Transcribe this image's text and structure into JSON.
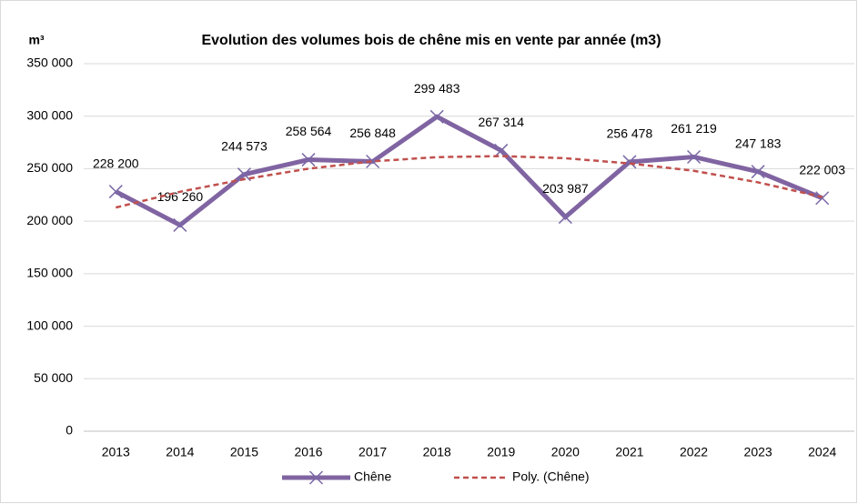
{
  "chart_data": {
    "type": "line",
    "title": "Evolution des volumes bois de chêne mis en vente par année (m3)",
    "ylabel": "m³",
    "categories": [
      "2013",
      "2014",
      "2015",
      "2016",
      "2017",
      "2018",
      "2019",
      "2020",
      "2021",
      "2022",
      "2023",
      "2024"
    ],
    "series": [
      {
        "name": "Chêne",
        "color": "#8064a2",
        "marker": "x",
        "values": [
          228200,
          196260,
          244573,
          258564,
          256848,
          299483,
          267314,
          203987,
          256478,
          261219,
          247183,
          222003
        ],
        "value_labels": [
          "228 200",
          "196 260",
          "244 573",
          "258 564",
          "256 848",
          "299 483",
          "267 314",
          "203 987",
          "256 478",
          "261 219",
          "247 183",
          "222 003"
        ]
      },
      {
        "name": "Poly. (Chêne)",
        "color": "#c0504d",
        "dashed": true,
        "values": [
          213000,
          228000,
          240000,
          250000,
          257000,
          261000,
          262000,
          260000,
          255000,
          248000,
          237000,
          223000
        ]
      }
    ],
    "ylim": [
      0,
      350000
    ],
    "yticks": [
      0,
      {
        "value": 50000,
        "label": "50 000"
      },
      {
        "value": 100000,
        "label": "100 000"
      },
      {
        "value": 150000,
        "label": "150 000"
      },
      {
        "value": 200000,
        "label": "200 000"
      },
      {
        "value": 250000,
        "label": "250 000"
      },
      {
        "value": 300000,
        "label": "300 000"
      },
      {
        "value": 350000,
        "label": "350 000"
      }
    ],
    "grid": true,
    "legend": "bottom"
  }
}
